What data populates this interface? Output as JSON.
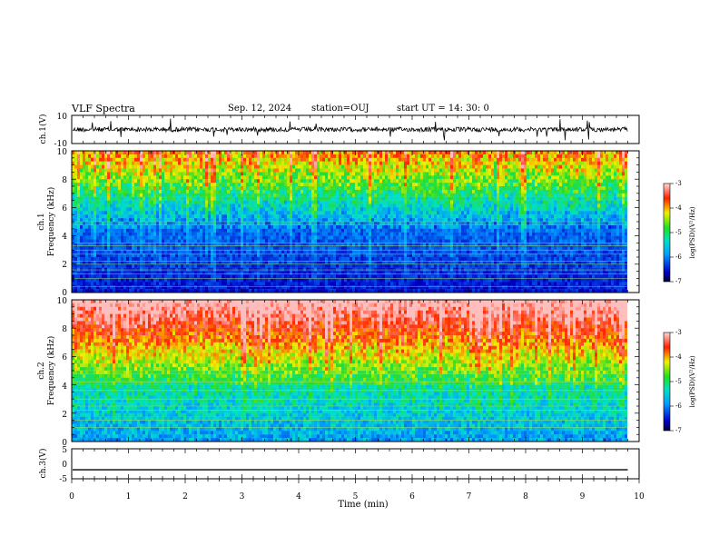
{
  "header": {
    "title": "VLF Spectra",
    "date": "Sep. 12, 2024",
    "station": "station=OUJ",
    "start": "start  UT =   14: 30: 0"
  },
  "chart_data": [
    {
      "type": "line",
      "panel": "ch1-waveform",
      "ylabel": "ch.1(V)",
      "ylim": [
        -10,
        10
      ],
      "yticks": [
        "10",
        "-10"
      ],
      "baseline": 0,
      "xlim": [
        0,
        10
      ]
    },
    {
      "type": "heatmap",
      "panel": "ch1-spectrogram",
      "ylabel_line1": "ch.1",
      "ylabel_line2": "Frequency  (kHz)",
      "ylim": [
        0,
        10
      ],
      "yticks": [
        "0",
        "2",
        "4",
        "6",
        "8",
        "10"
      ],
      "xlim": [
        0,
        10
      ],
      "data_end_min": 9.8,
      "colorbar": {
        "label": "log(PSD)(V²/Hz)",
        "range": [
          -7,
          -3
        ],
        "ticks": [
          "-3",
          "-4",
          "-5",
          "-6",
          "-7"
        ]
      }
    },
    {
      "type": "heatmap",
      "panel": "ch2-spectrogram",
      "ylabel_line1": "ch.2",
      "ylabel_line2": "Frequency  (kHz)",
      "ylim": [
        0,
        10
      ],
      "yticks": [
        "0",
        "2",
        "4",
        "6",
        "8",
        "10"
      ],
      "xlim": [
        0,
        10
      ],
      "data_end_min": 9.8,
      "colorbar": {
        "label": "log(PSD)(V²/Hz)",
        "range": [
          -7,
          -3
        ],
        "ticks": [
          "-3",
          "-4",
          "-5",
          "-6",
          "-7"
        ]
      }
    },
    {
      "type": "line",
      "panel": "ch3-waveform",
      "ylabel": "ch.3(V)",
      "ylim": [
        -5,
        5
      ],
      "yticks": [
        "5",
        "0",
        "-5"
      ],
      "baseline": -2,
      "xlim": [
        0,
        10
      ],
      "xlabel": "Time  (min)",
      "xticks": [
        "0",
        "1",
        "2",
        "3",
        "4",
        "5",
        "6",
        "7",
        "8",
        "9",
        "10"
      ]
    }
  ]
}
